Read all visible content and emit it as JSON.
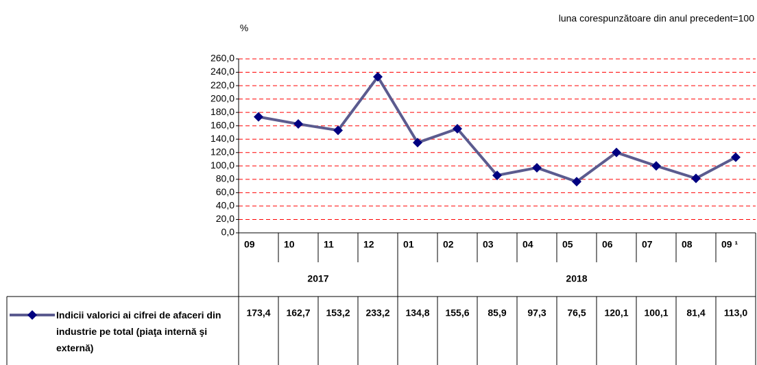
{
  "chart_data": {
    "type": "line",
    "note": "luna corespunzătoare din anul precedent=100",
    "y_label": "%",
    "categories": [
      "09",
      "10",
      "11",
      "12",
      "01",
      "02",
      "03",
      "04",
      "05",
      "06",
      "07",
      "08",
      "09 ¹"
    ],
    "year_groups": [
      {
        "label": "2017",
        "span": 4
      },
      {
        "label": "2018",
        "span": 9
      }
    ],
    "series": [
      {
        "name": "Indicii valorici ai cifrei de afaceri din industrie pe total (piaţa internă şi externă)",
        "color": "#5b5b8f",
        "marker_color": "#000080",
        "values": [
          173.4,
          162.7,
          153.2,
          233.2,
          134.8,
          155.6,
          85.9,
          97.3,
          76.5,
          120.1,
          100.1,
          81.4,
          113.0
        ],
        "value_labels": [
          "173,4",
          "162,7",
          "153,2",
          "233,2",
          "134,8",
          "155,6",
          "85,9",
          "97,3",
          "76,5",
          "120,1",
          "100,1",
          "81,4",
          "113,0"
        ]
      }
    ],
    "ylim": [
      0,
      260
    ],
    "yticks": [
      {
        "value": 0,
        "label": "0,0"
      },
      {
        "value": 20,
        "label": "20,0"
      },
      {
        "value": 40,
        "label": "40,0"
      },
      {
        "value": 60,
        "label": "60,0"
      },
      {
        "value": 80,
        "label": "80,0"
      },
      {
        "value": 100,
        "label": "100,0"
      },
      {
        "value": 120,
        "label": "120,0"
      },
      {
        "value": 140,
        "label": "140,0"
      },
      {
        "value": 160,
        "label": "160,0"
      },
      {
        "value": 180,
        "label": "180,0"
      },
      {
        "value": 200,
        "label": "200,0"
      },
      {
        "value": 220,
        "label": "220,0"
      },
      {
        "value": 240,
        "label": "240,0"
      },
      {
        "value": 260,
        "label": "260,0"
      }
    ],
    "grid": true,
    "grid_color": "#ff0000"
  }
}
